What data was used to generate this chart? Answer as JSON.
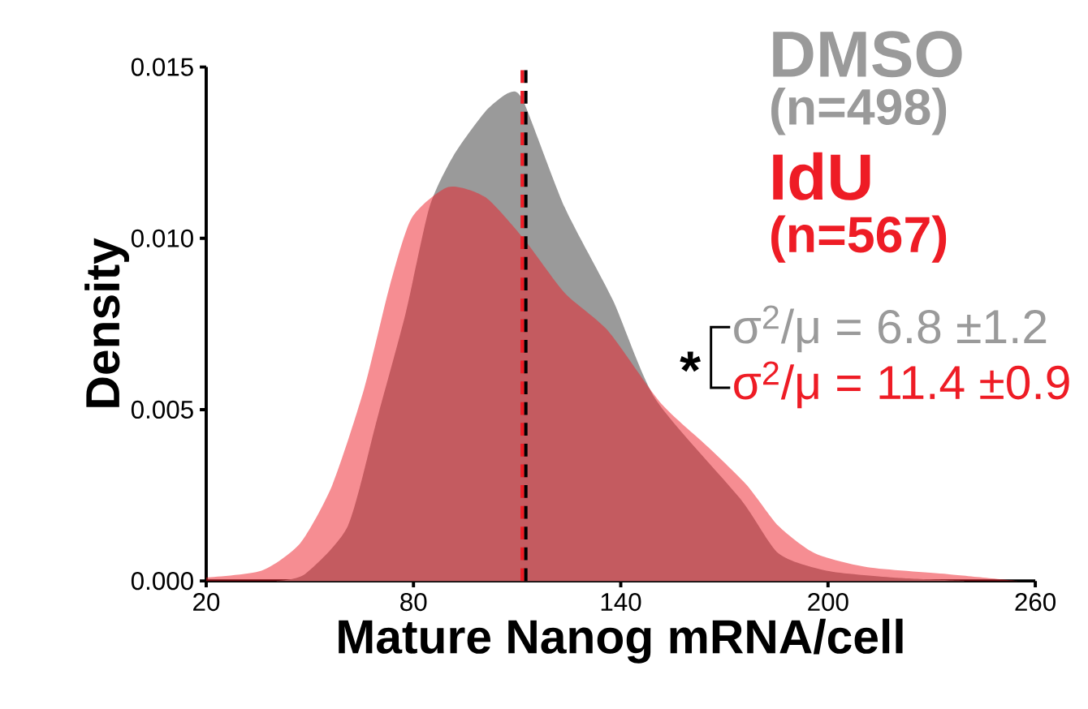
{
  "chart_data": {
    "type": "area",
    "xlabel": "Mature Nanog mRNA/cell",
    "ylabel": "Density",
    "xlim": [
      20,
      260
    ],
    "ylim": [
      0,
      0.015
    ],
    "xticks": [
      20,
      80,
      140,
      200,
      260
    ],
    "yticks": [
      {
        "value": 0,
        "label": "0.000"
      },
      {
        "value": 0.005,
        "label": "0.005"
      },
      {
        "value": 0.01,
        "label": "0.010"
      },
      {
        "value": 0.015,
        "label": "0.015"
      }
    ],
    "series": [
      {
        "name": "DMSO",
        "color": "#9a9a9a",
        "x": [
          40,
          48.6,
          61,
          69.4,
          77.7,
          84.6,
          91.5,
          100.8,
          107.7,
          111.8,
          123.8,
          137.7,
          150.1,
          174.6,
          185.7,
          199.5,
          219,
          240
        ],
        "values": [
          0,
          0.0002,
          0.0016,
          0.0047,
          0.0078,
          0.0109,
          0.0124,
          0.0137,
          0.01425,
          0.014,
          0.0109,
          0.0082,
          0.0053,
          0.0024,
          0.0008,
          0.0003,
          0.0001,
          0
        ]
      },
      {
        "name": "IdU",
        "color": "#ee1c25",
        "x": [
          20,
          36,
          47.2,
          56.5,
          65.7,
          73.1,
          79.5,
          90.1,
          100.8,
          111.8,
          123.8,
          136.3,
          151.5,
          165.4,
          176.5,
          185.7,
          196.3,
          211.5,
          234.6,
          255
        ],
        "values": [
          0.0001,
          0.0003,
          0.0011,
          0.0028,
          0.0056,
          0.0086,
          0.0106,
          0.0115,
          0.0112,
          0.01,
          0.0084,
          0.0073,
          0.0052,
          0.0039,
          0.0028,
          0.0016,
          0.0008,
          0.0004,
          0.0002,
          0
        ]
      }
    ],
    "ref_lines": [
      {
        "axis": "x",
        "value": 112.5,
        "color": "#000000",
        "line_style": "dashed"
      },
      {
        "axis": "x",
        "value": 111.5,
        "color": "#ee1c25",
        "line_style": "dashed"
      }
    ],
    "annotations": [
      "(n=498)",
      "(n=567)",
      "σ$^{2}$/μ = 6.8 ±1.2",
      "σ$^{2}$/μ = 11.4 ±0.9",
      "*"
    ]
  }
}
